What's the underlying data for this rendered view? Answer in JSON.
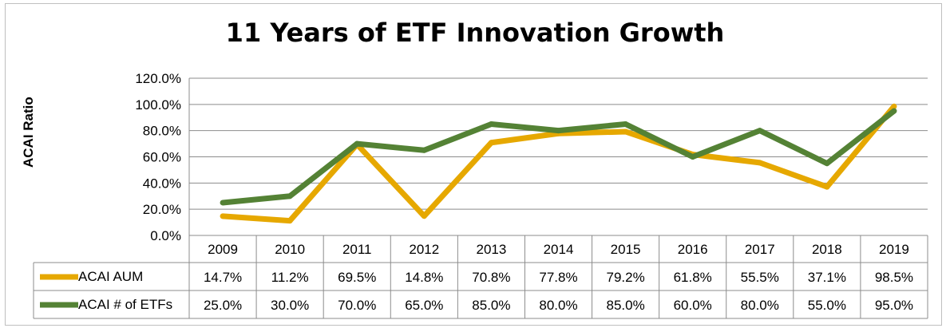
{
  "chart_data": {
    "type": "line",
    "title": "11 Years of ETF Innovation Growth",
    "ylabel": "ACAI Ratio",
    "xlabel": "",
    "categories": [
      "2009",
      "2010",
      "2011",
      "2012",
      "2013",
      "2014",
      "2015",
      "2016",
      "2017",
      "2018",
      "2019"
    ],
    "ylim": [
      0,
      120
    ],
    "yticks": [
      "0.0%",
      "20.0%",
      "40.0%",
      "60.0%",
      "80.0%",
      "100.0%",
      "120.0%"
    ],
    "grid": true,
    "legend": "data-table",
    "series": [
      {
        "name": "ACAI AUM",
        "color": "#e6a800",
        "values": [
          14.7,
          11.2,
          69.5,
          14.8,
          70.8,
          77.8,
          79.2,
          61.8,
          55.5,
          37.1,
          98.5
        ],
        "labels": [
          "14.7%",
          "11.2%",
          "69.5%",
          "14.8%",
          "70.8%",
          "77.8%",
          "79.2%",
          "61.8%",
          "55.5%",
          "37.1%",
          "98.5%"
        ]
      },
      {
        "name": "ACAI # of ETFs",
        "color": "#548235",
        "values": [
          25,
          30,
          70,
          65,
          85,
          80,
          85,
          60,
          80,
          55,
          95
        ],
        "labels": [
          "25.0%",
          "30.0%",
          "70.0%",
          "65.0%",
          "85.0%",
          "80.0%",
          "85.0%",
          "60.0%",
          "80.0%",
          "55.0%",
          "95.0%"
        ]
      }
    ]
  }
}
